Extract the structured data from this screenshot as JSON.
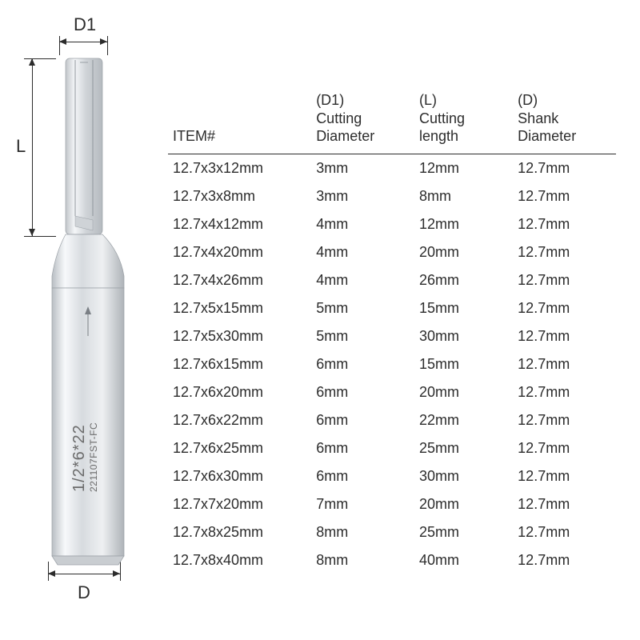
{
  "diagram": {
    "label_d1": "D1",
    "label_l": "L",
    "label_d": "D",
    "shank_text_main": "1/2*6*22",
    "shank_text_sub": "221107FST-FC",
    "colors": {
      "text": "#2c2c2c",
      "body_light": "#e6e8ea",
      "body_mid": "#cfd3d7",
      "body_shadow": "#a8adb2",
      "highlight": "#f6f8fa",
      "cut_line": "#9aa0a6"
    }
  },
  "table": {
    "headers": {
      "item": "ITEM#",
      "d1_sup": "(D1)",
      "d1": "Cutting\nDiameter",
      "l_sup": "(L)",
      "l": "Cutting\nlength",
      "d_sup": "(D)",
      "d": "Shank\nDiameter"
    },
    "rows": [
      {
        "item": "12.7x3x12mm",
        "d1": "3mm",
        "l": "12mm",
        "d": "12.7mm"
      },
      {
        "item": "12.7x3x8mm",
        "d1": "3mm",
        "l": "8mm",
        "d": "12.7mm"
      },
      {
        "item": "12.7x4x12mm",
        "d1": "4mm",
        "l": "12mm",
        "d": "12.7mm"
      },
      {
        "item": "12.7x4x20mm",
        "d1": "4mm",
        "l": "20mm",
        "d": "12.7mm"
      },
      {
        "item": "12.7x4x26mm",
        "d1": "4mm",
        "l": "26mm",
        "d": "12.7mm"
      },
      {
        "item": "12.7x5x15mm",
        "d1": "5mm",
        "l": "15mm",
        "d": "12.7mm"
      },
      {
        "item": "12.7x5x30mm",
        "d1": "5mm",
        "l": "30mm",
        "d": "12.7mm"
      },
      {
        "item": "12.7x6x15mm",
        "d1": "6mm",
        "l": "15mm",
        "d": "12.7mm"
      },
      {
        "item": "12.7x6x20mm",
        "d1": "6mm",
        "l": "20mm",
        "d": "12.7mm"
      },
      {
        "item": "12.7x6x22mm",
        "d1": "6mm",
        "l": "22mm",
        "d": "12.7mm"
      },
      {
        "item": "12.7x6x25mm",
        "d1": "6mm",
        "l": "25mm",
        "d": "12.7mm"
      },
      {
        "item": "12.7x6x30mm",
        "d1": "6mm",
        "l": "30mm",
        "d": "12.7mm"
      },
      {
        "item": "12.7x7x20mm",
        "d1": "7mm",
        "l": "20mm",
        "d": "12.7mm"
      },
      {
        "item": "12.7x8x25mm",
        "d1": "8mm",
        "l": "25mm",
        "d": "12.7mm"
      },
      {
        "item": "12.7x8x40mm",
        "d1": "8mm",
        "l": "40mm",
        "d": "12.7mm"
      }
    ]
  }
}
